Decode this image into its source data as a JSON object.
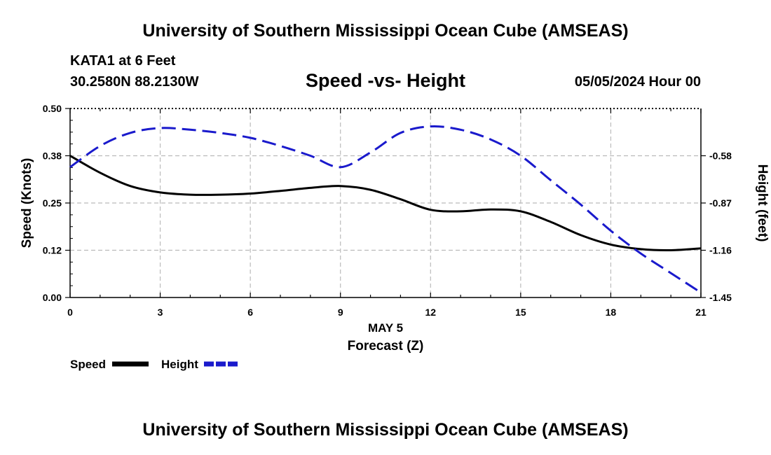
{
  "header": {
    "main_title": "University of Southern Mississippi Ocean Cube (AMSEAS)",
    "station": "KATA1 at 6 Feet",
    "coords": "30.2580N  88.2130W",
    "subtitle": "Speed -vs- Height",
    "datetime": "05/05/2024 Hour 00"
  },
  "footer": {
    "title": "University of Southern Mississippi Ocean Cube (AMSEAS)"
  },
  "chart_data": {
    "type": "line",
    "title": "Speed -vs- Height",
    "xlabel": "Forecast (Z)",
    "xlabel_date": "MAY 5",
    "ylabel": "Speed (Knots)",
    "y2label": "Height (feet)",
    "xlim": [
      0,
      21
    ],
    "ylim": [
      0.0,
      0.5
    ],
    "y2lim": [
      -1.45,
      -0.29
    ],
    "grid": true,
    "x_ticks": [
      "0",
      "3",
      "6",
      "9",
      "12",
      "15",
      "18",
      "21"
    ],
    "y_ticks": [
      "0.00",
      "0.12",
      "0.25",
      "0.38",
      "0.50"
    ],
    "y_tick_values": [
      0.0,
      0.125,
      0.25,
      0.375,
      0.5
    ],
    "y2_ticks": [
      "-0.58",
      "-0.87",
      "-1.16",
      "-1.45"
    ],
    "y2_tick_values": [
      -0.58,
      -0.87,
      -1.16,
      -1.45
    ],
    "series": [
      {
        "name": "Speed",
        "axis": "left",
        "color": "#000000",
        "dash": false,
        "x": [
          0,
          1,
          2,
          3,
          4,
          5,
          6,
          7,
          8,
          9,
          10,
          11,
          12,
          13,
          14,
          15,
          16,
          17,
          18,
          19,
          20,
          21
        ],
        "values": [
          0.375,
          0.33,
          0.295,
          0.278,
          0.272,
          0.272,
          0.275,
          0.282,
          0.29,
          0.295,
          0.285,
          0.26,
          0.232,
          0.228,
          0.233,
          0.228,
          0.2,
          0.165,
          0.14,
          0.128,
          0.125,
          0.13
        ]
      },
      {
        "name": "Height",
        "axis": "right",
        "color": "#1a1acc",
        "dash": true,
        "x": [
          0,
          1,
          2,
          3,
          4,
          5,
          6,
          7,
          8,
          9,
          10,
          11,
          12,
          13,
          14,
          15,
          16,
          17,
          18,
          19,
          20,
          21
        ],
        "values": [
          -0.65,
          -0.52,
          -0.44,
          -0.41,
          -0.42,
          -0.44,
          -0.47,
          -0.52,
          -0.58,
          -0.65,
          -0.56,
          -0.44,
          -0.4,
          -0.42,
          -0.48,
          -0.58,
          -0.73,
          -0.88,
          -1.04,
          -1.18,
          -1.3,
          -1.42
        ]
      }
    ],
    "legend": [
      {
        "label": "Speed",
        "color": "#000000",
        "dash": false
      },
      {
        "label": "Height",
        "color": "#1a1acc",
        "dash": true
      }
    ]
  }
}
